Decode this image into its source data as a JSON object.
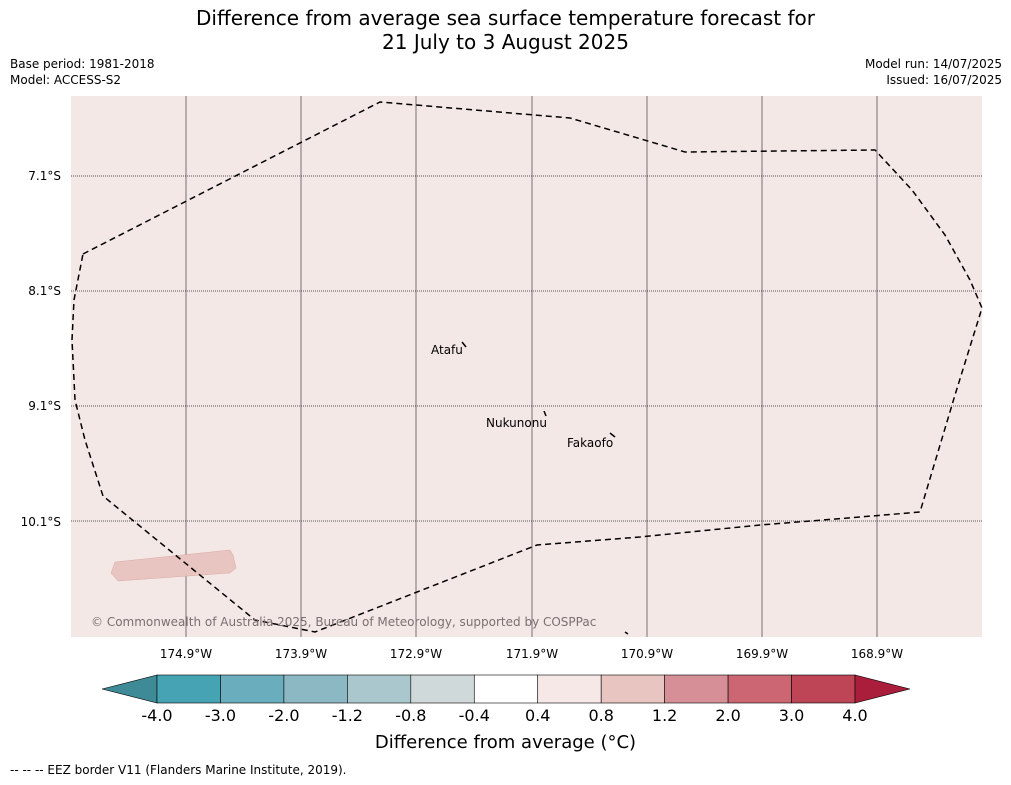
{
  "title_line1": "Difference from average sea surface temperature forecast for",
  "title_line2": "21 July to 3 August 2025",
  "meta_left": [
    "Base period: 1981-2018",
    "Model: ACCESS-S2"
  ],
  "meta_right": [
    "Model run: 14/07/2025",
    "Issued: 16/07/2025"
  ],
  "map": {
    "background_color": "#f4e8e6",
    "lat_labels": [
      "7.1°S",
      "8.1°S",
      "9.1°S",
      "10.1°S"
    ],
    "lon_labels": [
      "174.9°W",
      "173.9°W",
      "172.9°W",
      "171.9°W",
      "170.9°W",
      "169.9°W",
      "168.9°W"
    ],
    "places": [
      "Atafu",
      "Nukunonu",
      "Fakaofo"
    ],
    "copyright": "© Commonwealth of Australia 2025, Bureau of Meteorology, supported by COSPPac"
  },
  "colorbar": {
    "ticks": [
      "-4.0",
      "-3.0",
      "-2.0",
      "-1.2",
      "-0.8",
      "-0.4",
      "0.4",
      "0.8",
      "1.2",
      "2.0",
      "3.0",
      "4.0"
    ],
    "colors": [
      "#3e8a96",
      "#46a3b3",
      "#6aadbd",
      "#8cb8c3",
      "#a9c7cc",
      "#d0d9d9",
      "#ffffff",
      "#f6e8e6",
      "#e8c5c0",
      "#d68e97",
      "#cb6672",
      "#bd4555",
      "#aa1e3c"
    ],
    "label": "Difference from average (°C)"
  },
  "footer": "--  --  -- EEZ border V11 (Flanders Marine Institute, 2019)."
}
